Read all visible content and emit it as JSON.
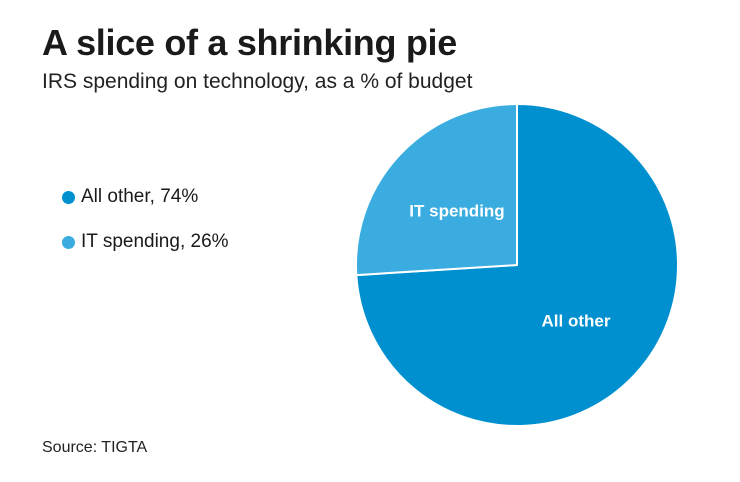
{
  "title": "A slice of a shrinking pie",
  "subtitle": "IRS spending on technology, as a % of budget",
  "source": "Source: TIGTA",
  "legend": [
    {
      "text": "All other, 74%",
      "color": "#0090cf"
    },
    {
      "text": "IT spending, 26%",
      "color": "#3aacdf"
    }
  ],
  "chart_data": {
    "type": "pie",
    "title": "A slice of a shrinking pie",
    "subtitle": "IRS spending on technology, as a % of budget",
    "slices": [
      {
        "label": "All other",
        "value": 74,
        "color": "#0090cf"
      },
      {
        "label": "IT spending",
        "value": 26,
        "color": "#3aacdf"
      }
    ],
    "legend_position": "left",
    "slice_labels": [
      "All other",
      "IT spending"
    ]
  }
}
